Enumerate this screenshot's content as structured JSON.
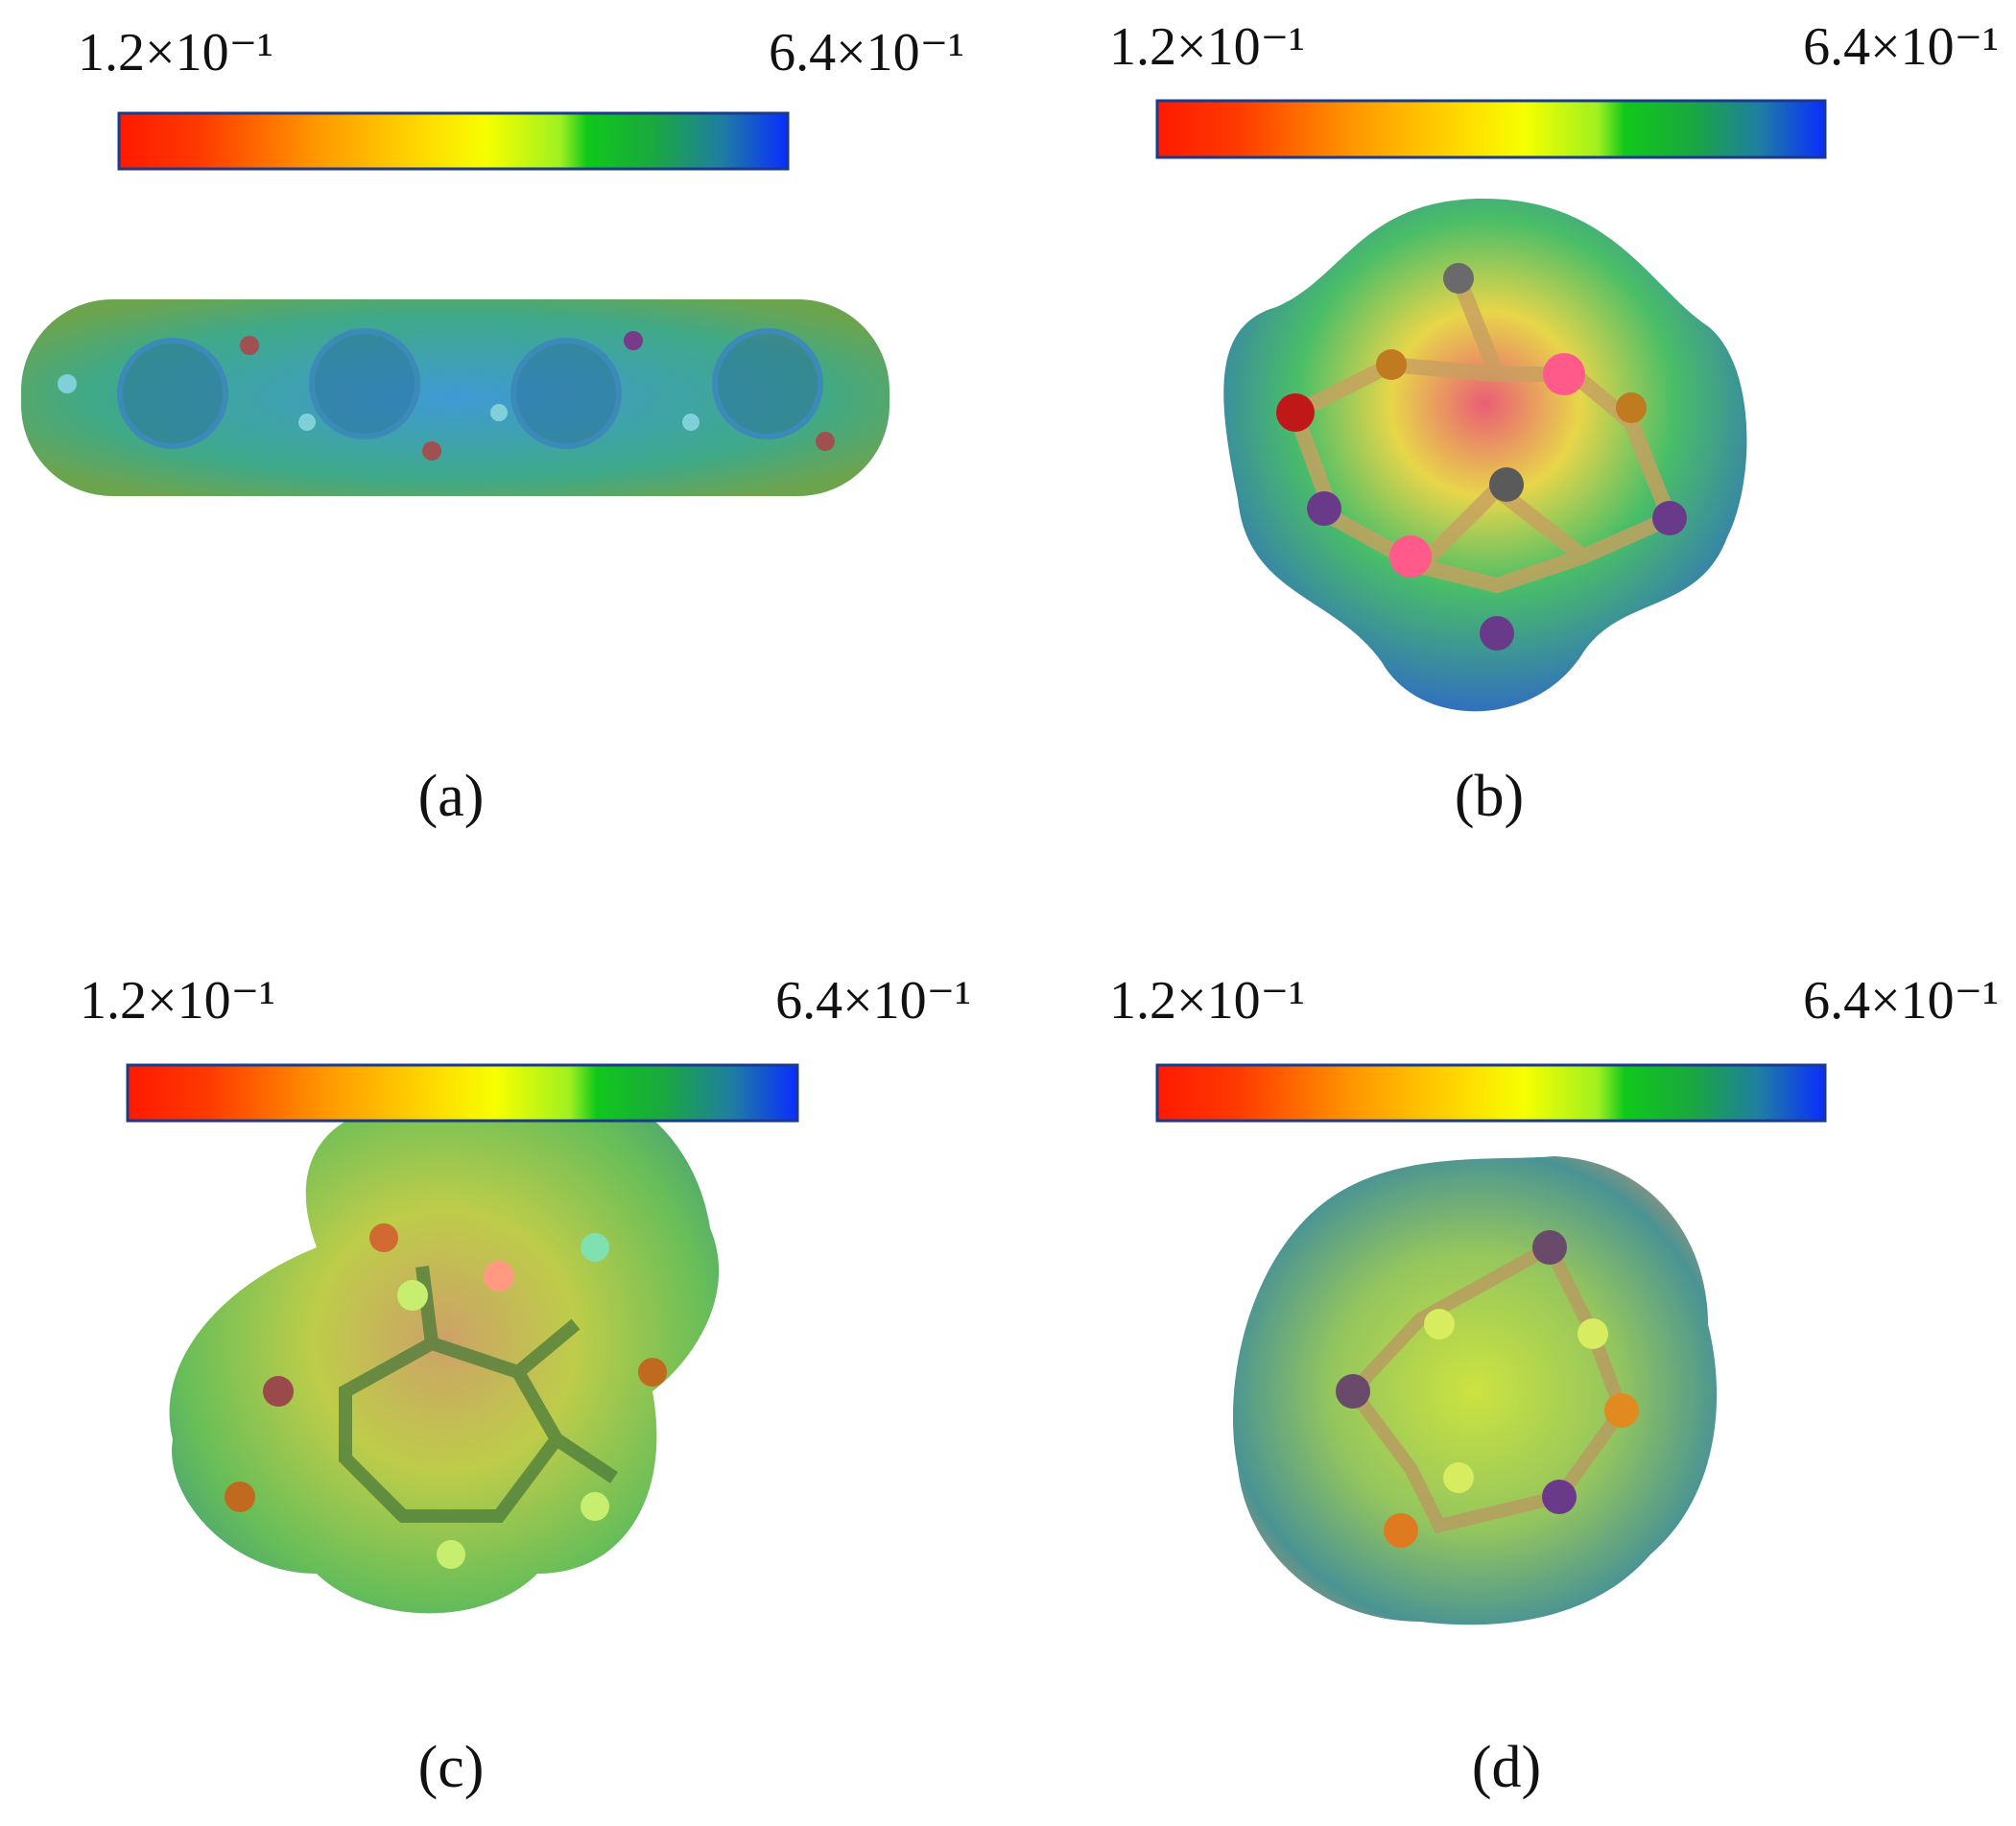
{
  "panels": [
    {
      "colorbar": {
        "min_label": "1.2×10⁻¹",
        "max_label": "6.4×10⁻¹"
      },
      "caption": "(a)"
    },
    {
      "colorbar": {
        "min_label": "1.2×10⁻¹",
        "max_label": "6.4×10⁻¹"
      },
      "caption": "(b)"
    },
    {
      "colorbar": {
        "min_label": "1.2×10⁻¹",
        "max_label": "6.4×10⁻¹"
      },
      "caption": "(c)"
    },
    {
      "colorbar": {
        "min_label": "1.2×10⁻¹",
        "max_label": "6.4×10⁻¹"
      },
      "caption": "(d)"
    }
  ]
}
